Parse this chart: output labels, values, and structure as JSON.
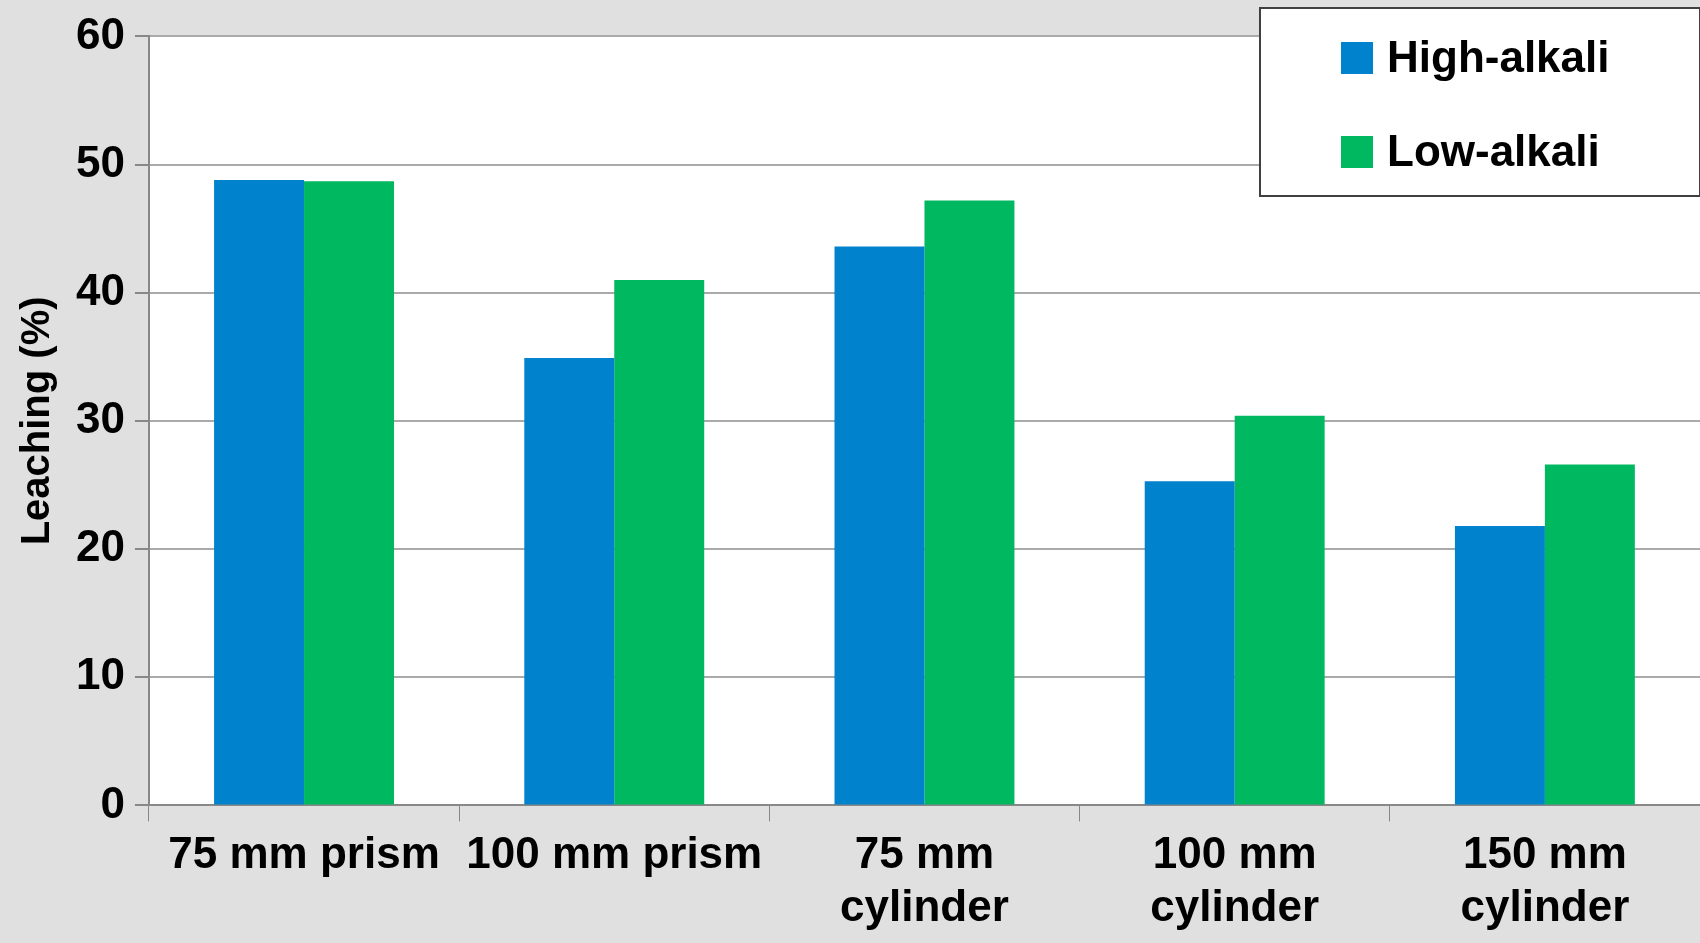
{
  "chart_data": {
    "type": "bar",
    "ylabel": "Leaching (%)",
    "categories": [
      "75 mm prism",
      "100 mm prism",
      "75 mm cylinder",
      "100 mm cylinder",
      "150 mm cylinder"
    ],
    "series": [
      {
        "name": "High-alkali",
        "color": "#0082cc",
        "values": [
          48.8,
          34.9,
          43.6,
          25.3,
          21.8
        ]
      },
      {
        "name": "Low-alkali",
        "color": "#00b860",
        "values": [
          48.7,
          41.0,
          47.2,
          30.4,
          26.6
        ]
      }
    ],
    "ylim": [
      0,
      60
    ],
    "yticks": [
      0,
      10,
      20,
      30,
      40,
      50,
      60
    ],
    "grid": "y",
    "legend": "top right"
  }
}
